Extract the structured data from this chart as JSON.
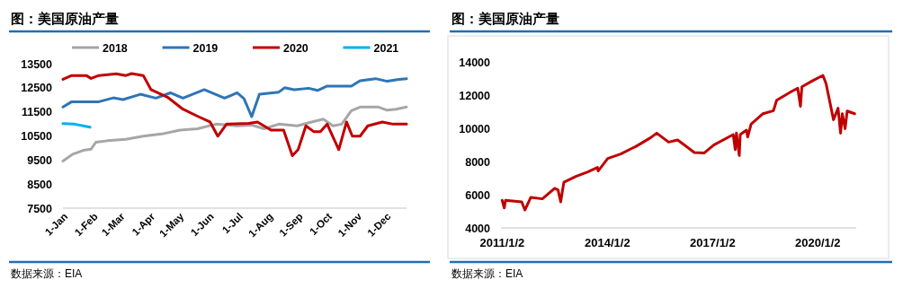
{
  "chart_data": [
    {
      "type": "line",
      "title": "图：美国原油产量",
      "annotations": [
        "数据来源：EIA"
      ],
      "legend": "top",
      "xlim": [
        "--01-01",
        "--12-22"
      ],
      "xticks": [
        {
          "value": "--01-01",
          "label": "1-Jan"
        },
        {
          "value": "--02-01",
          "label": "1-Feb"
        },
        {
          "value": "--03-01",
          "label": "1-Mar"
        },
        {
          "value": "--04-01",
          "label": "1-Apr"
        },
        {
          "value": "--05-01",
          "label": "1-May"
        },
        {
          "value": "--06-01",
          "label": "1-Jun"
        },
        {
          "value": "--07-01",
          "label": "1-Jul"
        },
        {
          "value": "--08-01",
          "label": "1-Aug"
        },
        {
          "value": "--09-01",
          "label": "1-Sep"
        },
        {
          "value": "--10-01",
          "label": "1-Oct"
        },
        {
          "value": "--11-01",
          "label": "1-Nov"
        },
        {
          "value": "--12-01",
          "label": "1-Dec"
        }
      ],
      "ylim": [
        7500,
        13500
      ],
      "yticks": [
        7500,
        8500,
        9500,
        10500,
        11500,
        12500,
        13500
      ],
      "series": [
        {
          "name": "2018",
          "color": "#a6a6a6",
          "x": [
            "--01-01",
            "--01-11",
            "--01-22",
            "--01-30",
            "--02-04",
            "--02-16",
            "--03-07",
            "--03-25",
            "--04-13",
            "--05-02",
            "--05-20",
            "--06-08",
            "--06-30",
            "--07-15",
            "--07-28",
            "--08-12",
            "--08-31",
            "--09-15",
            "--09-27",
            "--10-07",
            "--10-16",
            "--10-26",
            "--11-04",
            "--11-23",
            "--12-02",
            "--12-11",
            "--12-22"
          ],
          "values": [
            9460,
            9740,
            9900,
            9950,
            10240,
            10300,
            10360,
            10490,
            10580,
            10740,
            10800,
            10990,
            10920,
            10950,
            10800,
            10990,
            10920,
            11080,
            11200,
            10920,
            10990,
            11550,
            11700,
            11700,
            11570,
            11610,
            11700
          ]
        },
        {
          "name": "2019",
          "color": "#2e75b6",
          "x": [
            "--01-01",
            "--01-10",
            "--02-07",
            "--02-22",
            "--03-04",
            "--03-22",
            "--04-07",
            "--04-22",
            "--05-05",
            "--05-27",
            "--06-17",
            "--06-30",
            "--07-07",
            "--07-15",
            "--07-23",
            "--08-12",
            "--08-18",
            "--08-28",
            "--09-12",
            "--09-21",
            "--10-01",
            "--10-26",
            "--11-04",
            "--11-20",
            "--12-02",
            "--12-14",
            "--12-22"
          ],
          "values": [
            11700,
            11920,
            11920,
            12080,
            12010,
            12230,
            12070,
            12290,
            12070,
            12420,
            12070,
            12290,
            12050,
            11300,
            12230,
            12320,
            12500,
            12420,
            12480,
            12390,
            12570,
            12570,
            12790,
            12880,
            12770,
            12850,
            12880
          ]
        },
        {
          "name": "2020",
          "color": "#c00000",
          "x": [
            "--01-01",
            "--01-10",
            "--01-25",
            "--01-30",
            "--02-07",
            "--02-25",
            "--03-07",
            "--03-13",
            "--03-25",
            "--04-02",
            "--04-19",
            "--05-05",
            "--05-20",
            "--06-02",
            "--06-10",
            "--06-19",
            "--07-12",
            "--07-21",
            "--08-04",
            "--08-17",
            "--08-26",
            "--09-01",
            "--09-09",
            "--09-17",
            "--09-24",
            "--10-01",
            "--10-13",
            "--10-21",
            "--10-27",
            "--11-04",
            "--11-12",
            "--11-27",
            "--12-08",
            "--12-22"
          ],
          "values": [
            12850,
            13010,
            13010,
            12890,
            13010,
            13080,
            13010,
            13090,
            13010,
            12420,
            12110,
            11610,
            11320,
            11080,
            10490,
            10990,
            11020,
            11080,
            10740,
            10740,
            9680,
            9930,
            10920,
            10680,
            10680,
            10990,
            9930,
            11080,
            10490,
            10490,
            10920,
            11080,
            10990,
            10990
          ]
        },
        {
          "name": "2021",
          "color": "#00b0f0",
          "x": [
            "--01-01",
            "--01-13",
            "--01-22",
            "--01-29"
          ],
          "values": [
            11010,
            10990,
            10920,
            10860
          ]
        }
      ]
    },
    {
      "type": "line",
      "title": "图：美国原油产量",
      "annotations": [
        "数据来源：EIA"
      ],
      "xlim": [
        "2010-12-20",
        "2021-02-05"
      ],
      "xticks": [
        {
          "value": "2011-01-02",
          "label": "2011/1/2"
        },
        {
          "value": "2014-01-02",
          "label": "2014/1/2"
        },
        {
          "value": "2017-01-02",
          "label": "2017/1/2"
        },
        {
          "value": "2020-01-02",
          "label": "2020/1/2"
        }
      ],
      "ylim": [
        4000,
        14000
      ],
      "yticks": [
        4000,
        6000,
        8000,
        10000,
        12000,
        14000
      ],
      "series": [
        {
          "color": "#c00000",
          "x": [
            "2011-01-02",
            "2011-01-23",
            "2011-02-06",
            "2011-07-24",
            "2011-08-26",
            "2011-10-27",
            "2012-02-24",
            "2012-07-01",
            "2012-08-05",
            "2012-09-02",
            "2012-10-05",
            "2013-02-07",
            "2013-06-11",
            "2013-09-20",
            "2013-09-27",
            "2014-01-05",
            "2014-05-20",
            "2014-09-20",
            "2014-10-23",
            "2015-03-29",
            "2015-05-30",
            "2015-10-01",
            "2016-01-03",
            "2016-06-25",
            "2016-10-07",
            "2017-01-13",
            "2017-08-04",
            "2017-08-25",
            "2017-09-06",
            "2017-10-06",
            "2017-10-16",
            "2017-12-20",
            "2018-01-02",
            "2018-02-06",
            "2018-06-10",
            "2018-09-27",
            "2018-10-30",
            "2019-04-06",
            "2019-06-07",
            "2019-07-05",
            "2019-07-20",
            "2019-11-06",
            "2020-02-24",
            "2020-03-28",
            "2020-06-13",
            "2020-07-31",
            "2020-08-26",
            "2020-09-13",
            "2020-10-12",
            "2020-11-03",
            "2021-01-20"
          ],
          "values": [
            5660,
            5200,
            5660,
            5570,
            5080,
            5840,
            5750,
            6380,
            6290,
            5570,
            6750,
            7100,
            7370,
            7640,
            7430,
            8180,
            8450,
            8810,
            8900,
            9440,
            9710,
            9170,
            9300,
            8540,
            8520,
            8990,
            9620,
            8720,
            9710,
            8360,
            9620,
            9890,
            9480,
            10250,
            10880,
            11060,
            11690,
            12230,
            12410,
            11330,
            12500,
            12860,
            13190,
            12690,
            10520,
            11210,
            9710,
            10880,
            9980,
            11040,
            10880
          ]
        }
      ]
    }
  ]
}
